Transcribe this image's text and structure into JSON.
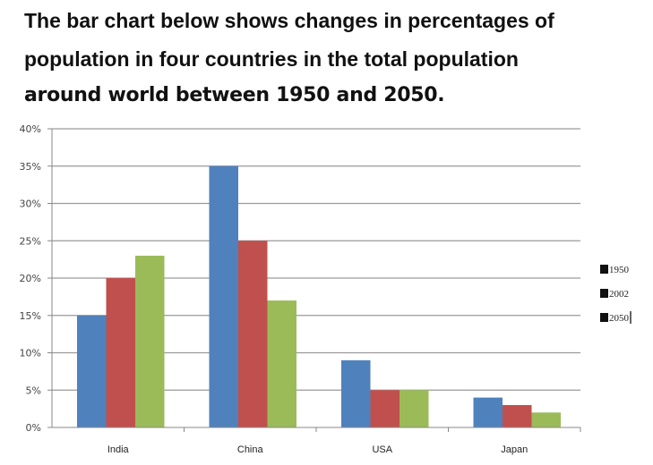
{
  "title_lines": [
    "The bar chart below shows changes in percentages of",
    "population in four countries in the total population",
    "around world between 1950 and 2050."
  ],
  "chart_data": {
    "type": "bar",
    "title": "The bar chart below shows changes in percentages of population in four countries in the total population around world between 1950 and 2050.",
    "categories": [
      "India",
      "China",
      "USA",
      "Japan"
    ],
    "series": [
      {
        "name": "1950",
        "values": [
          15,
          35,
          9,
          4
        ],
        "color": "#4F81BD"
      },
      {
        "name": "2002",
        "values": [
          20,
          25,
          5,
          3
        ],
        "color": "#C0504D"
      },
      {
        "name": "2050",
        "values": [
          23,
          17,
          5,
          2
        ],
        "color": "#9BBB59"
      }
    ],
    "xlabel": "",
    "ylabel": "",
    "ylim": [
      0,
      40
    ],
    "yticks": [
      0,
      5,
      10,
      15,
      20,
      25,
      30,
      35,
      40
    ],
    "ytick_format": "percent",
    "grid": true,
    "legend": {
      "placement": "right",
      "marker_color": "#111111",
      "entries": [
        "1950",
        "2002",
        "2050"
      ]
    }
  }
}
